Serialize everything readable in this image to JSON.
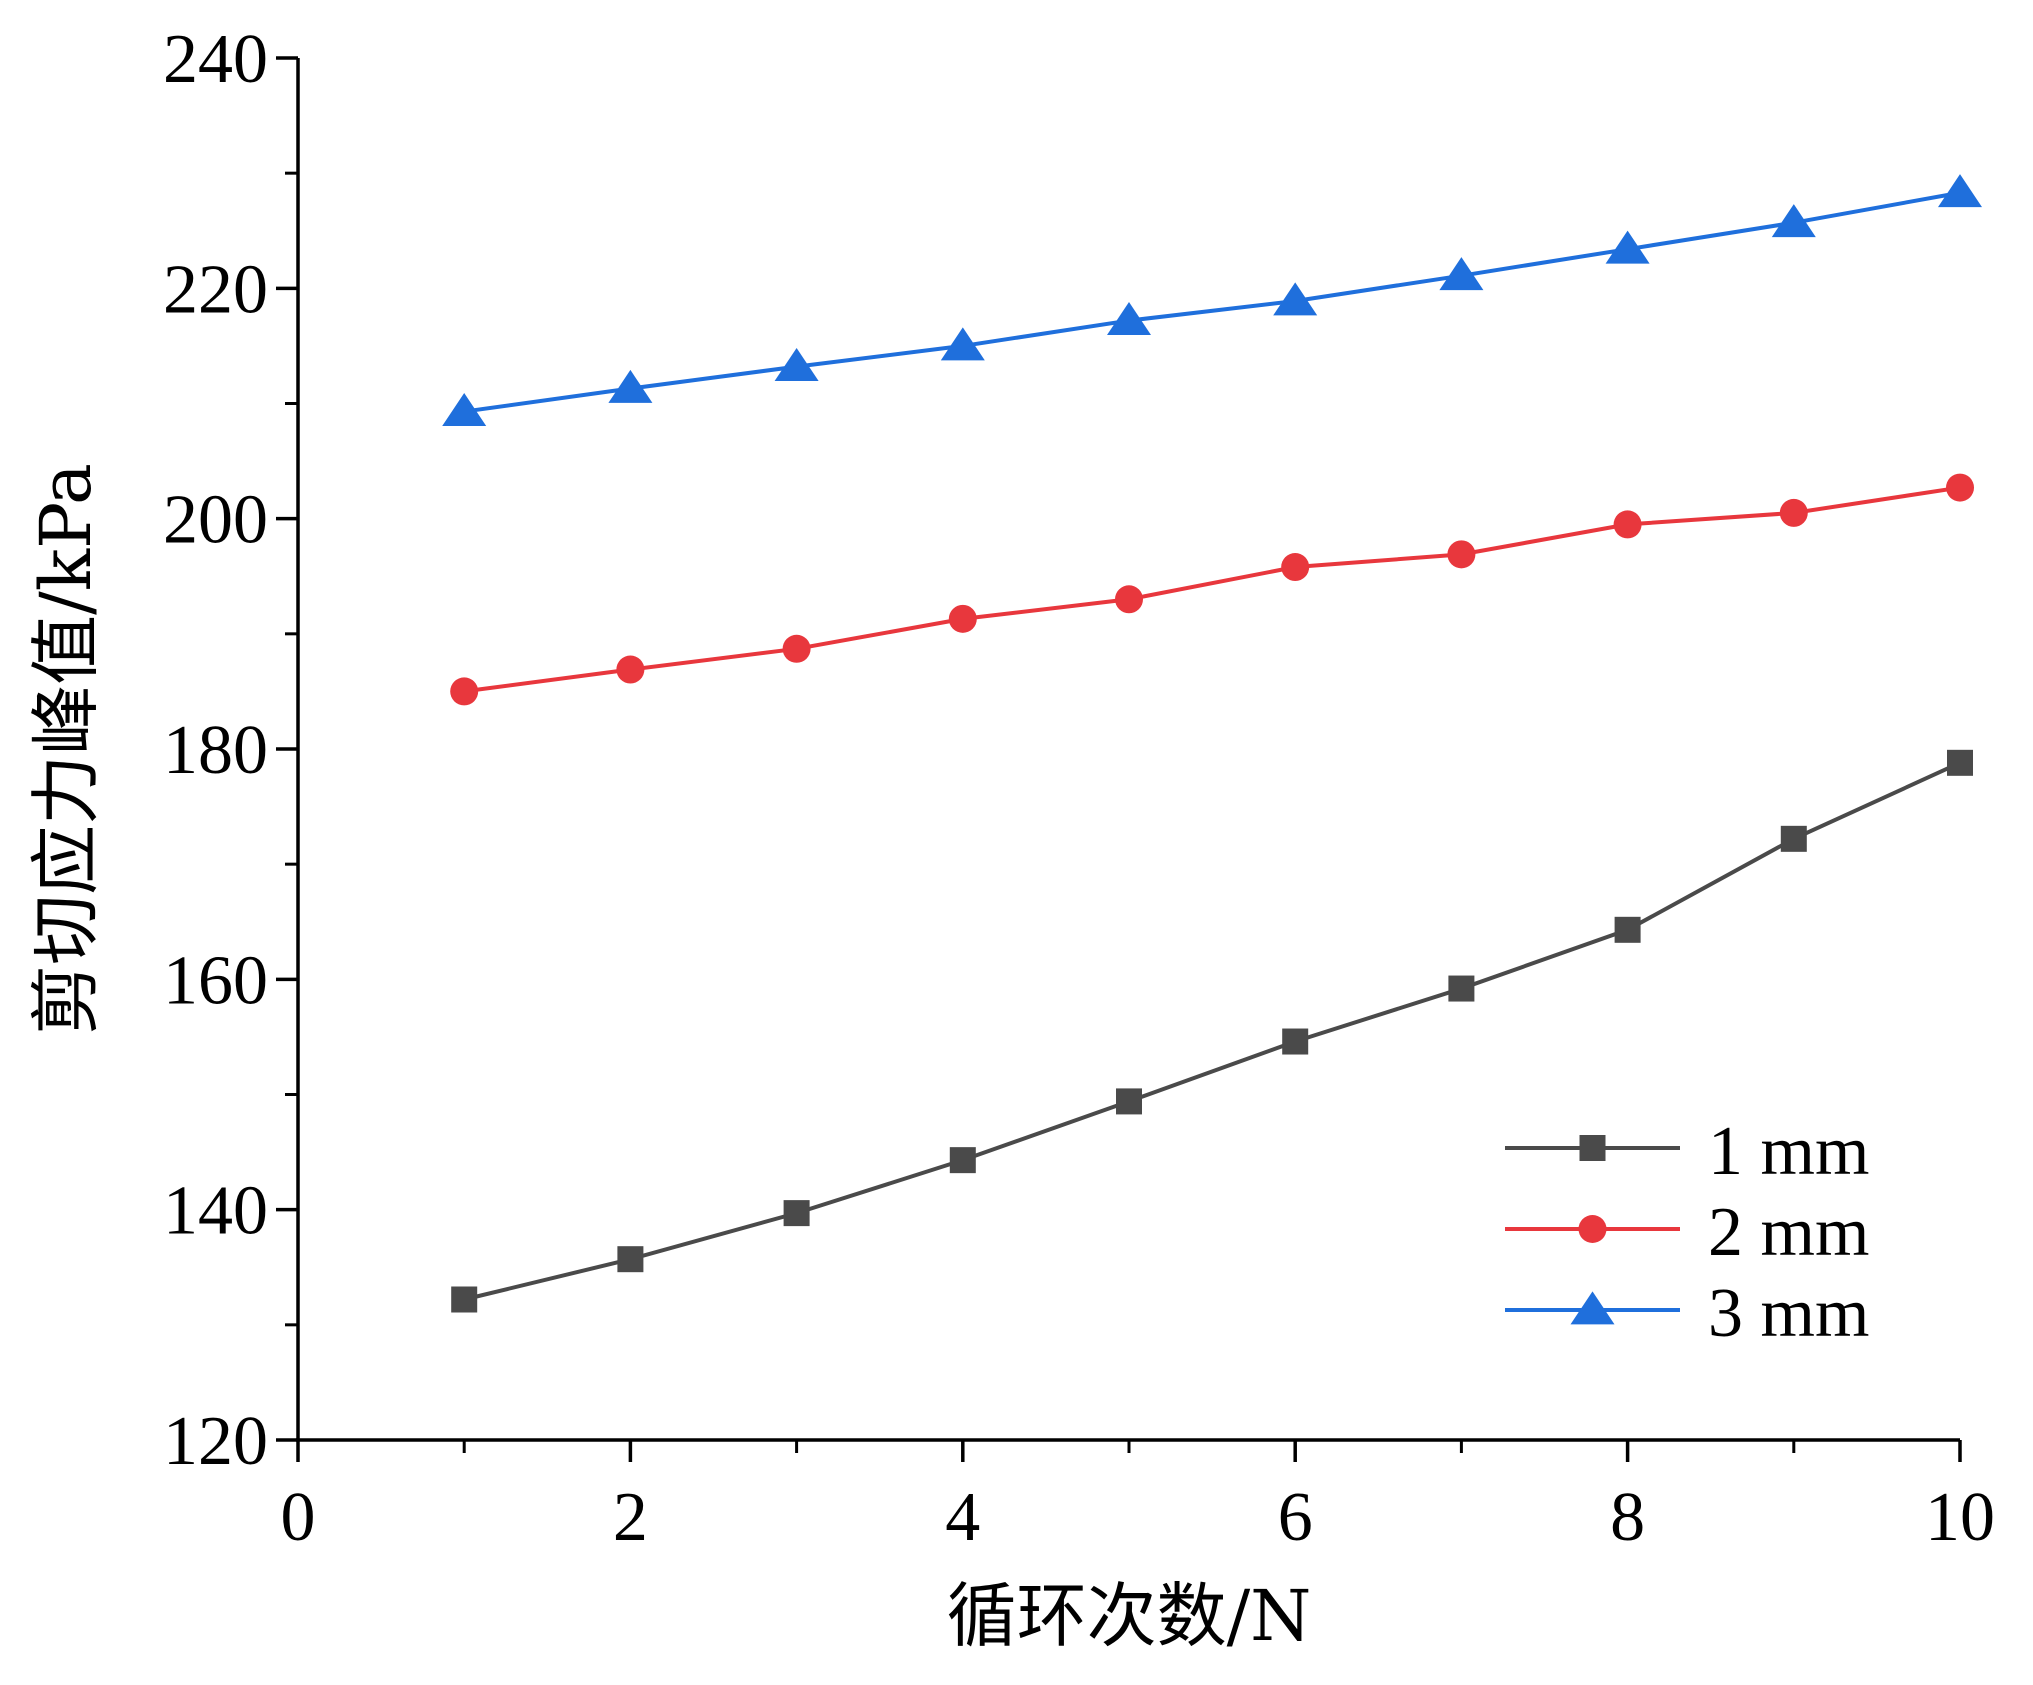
{
  "chart_data": {
    "type": "line",
    "title": "",
    "xlabel": "循环次数/N",
    "ylabel": "剪切应力峰值/kPa",
    "xlim": [
      0,
      10
    ],
    "ylim": [
      120,
      240
    ],
    "x_ticks": [
      0,
      2,
      4,
      6,
      8,
      10
    ],
    "y_ticks": [
      120,
      140,
      160,
      180,
      200,
      220,
      240
    ],
    "x_minor_ticks": [
      1,
      3,
      5,
      7,
      9
    ],
    "y_minor_ticks": [
      130,
      150,
      170,
      190,
      210,
      230
    ],
    "grid": false,
    "legend_position": "lower-right",
    "x": [
      1,
      2,
      3,
      4,
      5,
      6,
      7,
      8,
      9,
      10
    ],
    "series": [
      {
        "name": "1 mm",
        "color": "#4a4a4a",
        "marker": "square",
        "values": [
          132.2,
          135.7,
          139.7,
          144.3,
          149.4,
          154.6,
          159.2,
          164.3,
          172.2,
          178.8
        ]
      },
      {
        "name": "2 mm",
        "color": "#e8373d",
        "marker": "circle",
        "values": [
          185.0,
          186.9,
          188.7,
          191.3,
          193.0,
          195.8,
          196.9,
          199.5,
          200.5,
          202.7
        ]
      },
      {
        "name": "3 mm",
        "color": "#1f6fdc",
        "marker": "triangle",
        "values": [
          209.3,
          211.3,
          213.2,
          215.0,
          217.2,
          218.9,
          221.1,
          223.4,
          225.7,
          228.3
        ]
      }
    ]
  }
}
